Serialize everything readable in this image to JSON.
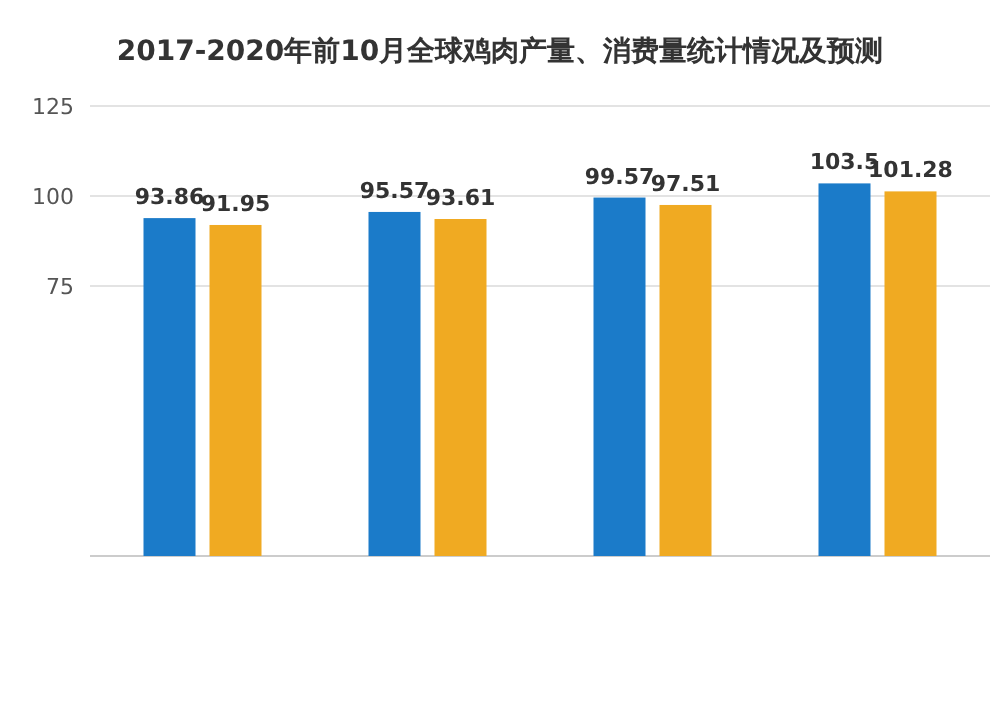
{
  "chart_data": {
    "type": "bar",
    "title": "2017-2020年前10月全球鸡肉产量、消费量统计情况及预测",
    "categories": [
      null,
      null,
      null,
      null
    ],
    "series": [
      {
        "color": "#1b7bc9",
        "values": [
          93.86,
          95.57,
          99.57,
          103.5
        ]
      },
      {
        "color": "#f0aa22",
        "values": [
          91.95,
          93.61,
          97.51,
          101.28
        ]
      }
    ],
    "ylim": [
      0,
      125
    ],
    "yticks": [
      75,
      100,
      125
    ],
    "grid": "y",
    "data_labels": true
  }
}
